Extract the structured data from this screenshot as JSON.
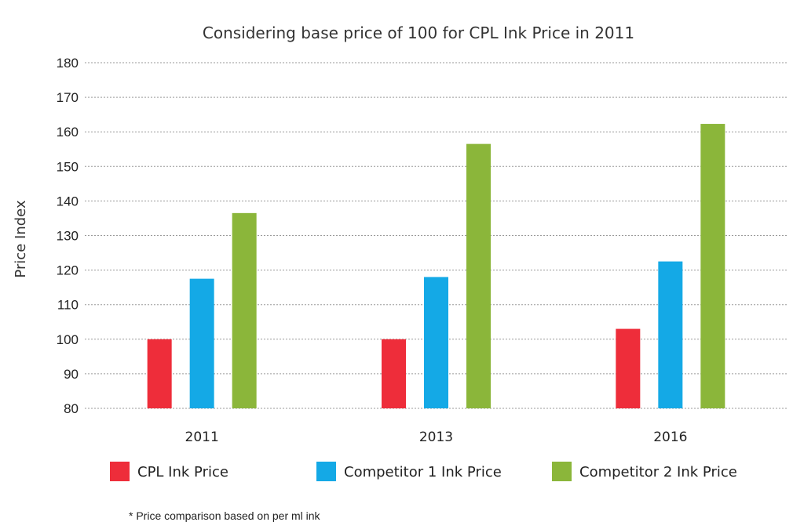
{
  "chart_data": {
    "type": "bar",
    "title": "Considering base price of 100 for CPL Ink Price in 2011",
    "ylabel": "Price Index",
    "xlabel": "",
    "categories": [
      "2011",
      "2013",
      "2016"
    ],
    "ylim": [
      80,
      180
    ],
    "yticks": [
      80,
      90,
      100,
      110,
      120,
      130,
      140,
      150,
      160,
      170,
      180
    ],
    "grid": true,
    "legend_position": "bottom",
    "series": [
      {
        "name": "CPL Ink Price",
        "color": "#ee2d3a",
        "values": [
          100,
          100,
          103
        ]
      },
      {
        "name": "Competitor 1 Ink Price",
        "color": "#14a9e6",
        "values": [
          117.5,
          118,
          122.5
        ]
      },
      {
        "name": "Competitor 2 Ink Price",
        "color": "#8bb63a",
        "values": [
          136.5,
          156.5,
          162.3
        ]
      }
    ],
    "footnote": "* Price comparison based on per ml ink"
  }
}
